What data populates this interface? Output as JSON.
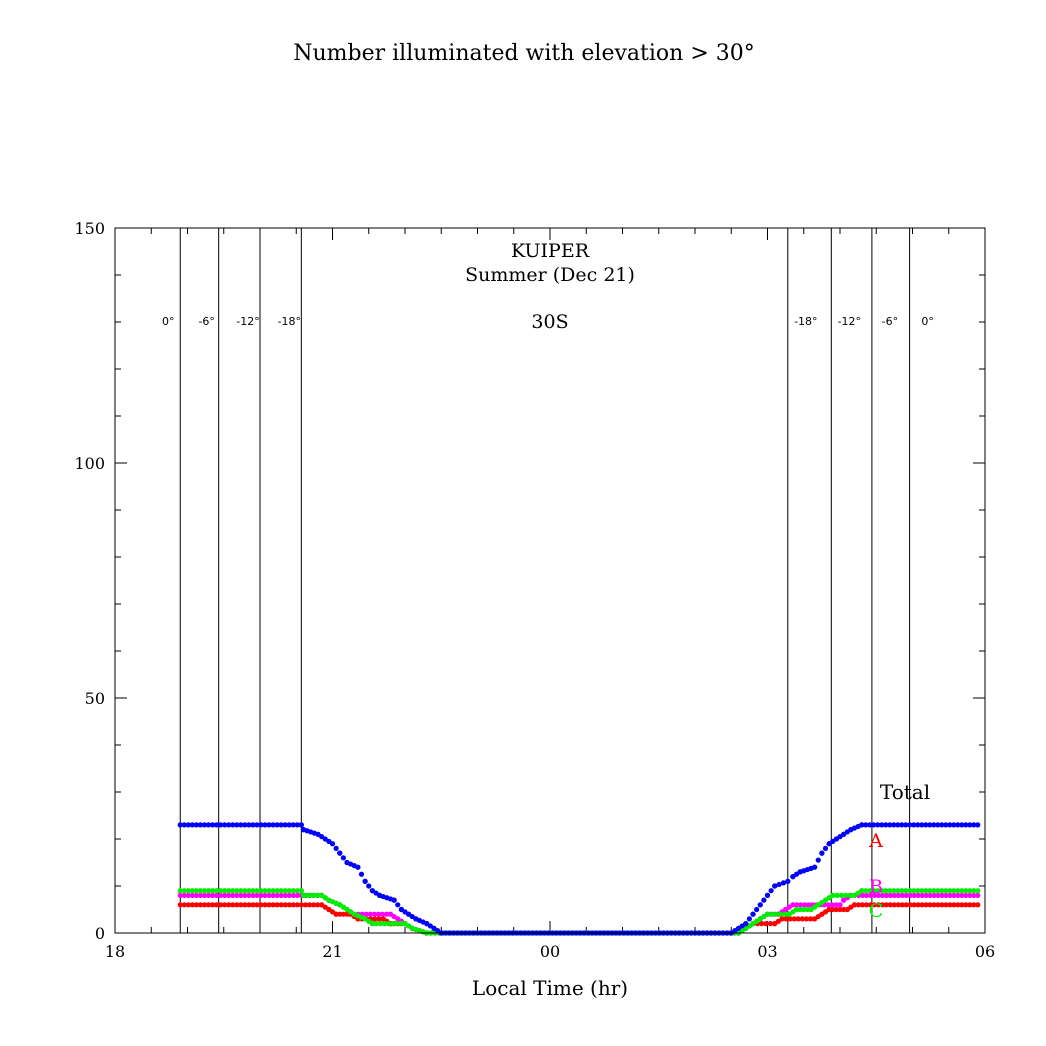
{
  "chart_data": {
    "type": "scatter",
    "title": "Number illuminated with elevation > 30°",
    "xlabel": "Local Time (hr)",
    "ylabel": "",
    "xlim": [
      18,
      30
    ],
    "ylim": [
      0,
      150
    ],
    "x_ticks": [
      {
        "value": 18,
        "label": "18"
      },
      {
        "value": 21,
        "label": "21"
      },
      {
        "value": 24,
        "label": "00"
      },
      {
        "value": 27,
        "label": "03"
      },
      {
        "value": 30,
        "label": "06"
      }
    ],
    "y_ticks": [
      {
        "value": 0,
        "label": "0"
      },
      {
        "value": 50,
        "label": "50"
      },
      {
        "value": 100,
        "label": "100"
      },
      {
        "value": 150,
        "label": "150"
      }
    ],
    "annotations": {
      "constellation": "KUIPER",
      "season": "Summer (Dec 21)",
      "latitude": "30S"
    },
    "twilight_lines": [
      {
        "x": 18.9,
        "label": "0°"
      },
      {
        "x": 19.43,
        "label": "-6°"
      },
      {
        "x": 20.0,
        "label": "-12°"
      },
      {
        "x": 20.57,
        "label": "-18°"
      },
      {
        "x": 27.28,
        "label": "-18°"
      },
      {
        "x": 27.88,
        "label": "-12°"
      },
      {
        "x": 28.44,
        "label": "-6°"
      },
      {
        "x": 28.96,
        "label": "0°"
      }
    ],
    "series": [
      {
        "name": "Total",
        "color": "#0000ff",
        "points": [
          [
            18.9,
            23
          ],
          [
            20.57,
            23
          ],
          [
            20.6,
            22
          ],
          [
            20.8,
            21
          ],
          [
            21.0,
            19
          ],
          [
            21.1,
            17
          ],
          [
            21.2,
            15
          ],
          [
            21.35,
            14
          ],
          [
            21.45,
            11
          ],
          [
            21.55,
            9
          ],
          [
            21.65,
            8
          ],
          [
            21.85,
            7
          ],
          [
            21.95,
            5
          ],
          [
            22.05,
            4
          ],
          [
            22.15,
            3
          ],
          [
            22.3,
            2
          ],
          [
            22.4,
            1
          ],
          [
            22.5,
            0
          ],
          [
            26.5,
            0
          ],
          [
            26.6,
            1
          ],
          [
            26.7,
            2
          ],
          [
            26.8,
            4
          ],
          [
            26.9,
            6
          ],
          [
            27.0,
            8
          ],
          [
            27.1,
            10
          ],
          [
            27.28,
            11
          ],
          [
            27.35,
            12
          ],
          [
            27.45,
            13
          ],
          [
            27.65,
            14
          ],
          [
            27.75,
            17
          ],
          [
            27.85,
            19
          ],
          [
            27.95,
            20
          ],
          [
            28.05,
            21
          ],
          [
            28.15,
            22
          ],
          [
            28.3,
            23
          ],
          [
            29.9,
            23
          ]
        ]
      },
      {
        "name": "A",
        "color": "#ff0000",
        "points": [
          [
            18.9,
            6
          ],
          [
            20.85,
            6
          ],
          [
            20.95,
            5
          ],
          [
            21.05,
            4
          ],
          [
            21.25,
            4
          ],
          [
            21.35,
            3
          ],
          [
            21.7,
            3
          ],
          [
            21.8,
            2
          ],
          [
            22.0,
            2
          ],
          [
            22.1,
            1
          ],
          [
            22.3,
            0
          ],
          [
            26.6,
            0
          ],
          [
            26.7,
            1
          ],
          [
            26.8,
            2
          ],
          [
            27.1,
            2
          ],
          [
            27.2,
            3
          ],
          [
            27.65,
            3
          ],
          [
            27.75,
            4
          ],
          [
            27.85,
            5
          ],
          [
            28.1,
            5
          ],
          [
            28.2,
            6
          ],
          [
            29.9,
            6
          ]
        ]
      },
      {
        "name": "B",
        "color": "#ff00ff",
        "points": [
          [
            18.9,
            8
          ],
          [
            20.85,
            8
          ],
          [
            20.95,
            7
          ],
          [
            21.1,
            6
          ],
          [
            21.2,
            5
          ],
          [
            21.3,
            4
          ],
          [
            21.8,
            4
          ],
          [
            21.9,
            3
          ],
          [
            22.0,
            2
          ],
          [
            22.1,
            1
          ],
          [
            22.3,
            0
          ],
          [
            26.6,
            0
          ],
          [
            26.7,
            1
          ],
          [
            26.8,
            2
          ],
          [
            26.9,
            3
          ],
          [
            27.0,
            4
          ],
          [
            27.15,
            4
          ],
          [
            27.25,
            5
          ],
          [
            27.35,
            6
          ],
          [
            28.0,
            6
          ],
          [
            28.05,
            7
          ],
          [
            28.15,
            8
          ],
          [
            29.9,
            8
          ]
        ]
      },
      {
        "name": "C",
        "color": "#00ee00",
        "points": [
          [
            18.9,
            9
          ],
          [
            20.57,
            9
          ],
          [
            20.6,
            8
          ],
          [
            20.85,
            8
          ],
          [
            20.95,
            7
          ],
          [
            21.1,
            6
          ],
          [
            21.2,
            5
          ],
          [
            21.3,
            4
          ],
          [
            21.45,
            3
          ],
          [
            21.55,
            2
          ],
          [
            22.0,
            2
          ],
          [
            22.1,
            1
          ],
          [
            22.3,
            0
          ],
          [
            26.6,
            0
          ],
          [
            26.7,
            1
          ],
          [
            26.8,
            2
          ],
          [
            26.9,
            3
          ],
          [
            27.0,
            4
          ],
          [
            27.3,
            4
          ],
          [
            27.4,
            5
          ],
          [
            27.6,
            5
          ],
          [
            27.7,
            6
          ],
          [
            27.8,
            7
          ],
          [
            27.9,
            8
          ],
          [
            28.2,
            8
          ],
          [
            28.3,
            9
          ],
          [
            29.9,
            9
          ]
        ]
      }
    ],
    "legend": [
      {
        "label": "Total",
        "color": "#000000"
      },
      {
        "label": "A",
        "color": "#ff0000"
      },
      {
        "label": "B",
        "color": "#ff00ff"
      },
      {
        "label": "C",
        "color": "#00ee00"
      }
    ]
  }
}
